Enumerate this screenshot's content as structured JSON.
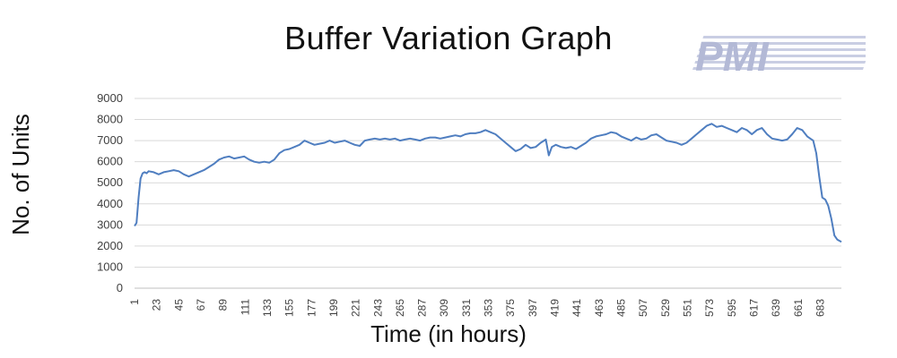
{
  "chart_data": {
    "type": "line",
    "title": "Buffer Variation Graph",
    "xlabel": "Time (in hours)",
    "ylabel": "No. of Units",
    "ylim": [
      0,
      9000
    ],
    "yticks": [
      0,
      1000,
      2000,
      3000,
      4000,
      5000,
      6000,
      7000,
      8000,
      9000
    ],
    "xlim": [
      1,
      704
    ],
    "xticks": [
      "1",
      "23",
      "45",
      "67",
      "89",
      "111",
      "133",
      "155",
      "177",
      "199",
      "221",
      "243",
      "265",
      "287",
      "309",
      "331",
      "353",
      "375",
      "397",
      "419",
      "441",
      "463",
      "485",
      "507",
      "529",
      "551",
      "573",
      "595",
      "617",
      "639",
      "661",
      "683"
    ],
    "grid": "horizontal",
    "legend": "none",
    "colors": {
      "line": "#4f7ec0",
      "grid": "#d9d9d9",
      "axis_text": "#404040"
    },
    "series": [
      {
        "x": [
          1,
          3,
          5,
          7,
          9,
          11,
          13,
          15,
          20,
          25,
          30,
          35,
          40,
          45,
          50,
          55,
          60,
          65,
          70,
          75,
          80,
          85,
          90,
          95,
          100,
          105,
          110,
          115,
          120,
          125,
          130,
          135,
          140,
          145,
          150,
          155,
          160,
          165,
          170,
          175,
          180,
          185,
          190,
          195,
          200,
          205,
          210,
          215,
          220,
          225,
          230,
          235,
          240,
          245,
          250,
          255,
          260,
          265,
          270,
          275,
          280,
          285,
          290,
          295,
          300,
          305,
          310,
          315,
          320,
          325,
          330,
          335,
          340,
          345,
          350,
          355,
          360,
          365,
          370,
          375,
          380,
          385,
          390,
          395,
          400,
          405,
          410,
          413,
          416,
          420,
          425,
          430,
          435,
          440,
          445,
          450,
          455,
          460,
          465,
          470,
          475,
          480,
          485,
          490,
          495,
          500,
          505,
          510,
          515,
          520,
          525,
          530,
          535,
          540,
          545,
          550,
          555,
          560,
          565,
          570,
          575,
          580,
          585,
          590,
          595,
          600,
          605,
          610,
          615,
          620,
          625,
          630,
          635,
          640,
          645,
          650,
          655,
          660,
          665,
          670,
          673,
          676,
          679,
          682,
          685,
          688,
          691,
          694,
          697,
          700,
          704
        ],
        "y": [
          2950,
          3100,
          4300,
          5200,
          5450,
          5500,
          5450,
          5550,
          5500,
          5400,
          5500,
          5550,
          5600,
          5550,
          5400,
          5300,
          5400,
          5500,
          5600,
          5750,
          5900,
          6100,
          6200,
          6250,
          6150,
          6200,
          6250,
          6100,
          6000,
          5950,
          6000,
          5950,
          6100,
          6400,
          6550,
          6600,
          6700,
          6800,
          7000,
          6900,
          6800,
          6850,
          6900,
          7000,
          6900,
          6950,
          7000,
          6900,
          6800,
          6750,
          7000,
          7050,
          7100,
          7050,
          7100,
          7050,
          7100,
          7000,
          7050,
          7100,
          7050,
          7000,
          7100,
          7150,
          7150,
          7100,
          7150,
          7200,
          7250,
          7200,
          7300,
          7350,
          7350,
          7400,
          7500,
          7400,
          7300,
          7100,
          6900,
          6700,
          6500,
          6600,
          6800,
          6650,
          6700,
          6900,
          7050,
          6300,
          6700,
          6800,
          6700,
          6650,
          6700,
          6600,
          6750,
          6900,
          7100,
          7200,
          7250,
          7300,
          7400,
          7350,
          7200,
          7100,
          7000,
          7150,
          7050,
          7100,
          7250,
          7300,
          7150,
          7000,
          6950,
          6900,
          6800,
          6900,
          7100,
          7300,
          7500,
          7700,
          7800,
          7650,
          7700,
          7600,
          7500,
          7400,
          7600,
          7500,
          7300,
          7500,
          7600,
          7300,
          7100,
          7050,
          7000,
          7050,
          7300,
          7600,
          7500,
          7200,
          7100,
          7000,
          6400,
          5300,
          4300,
          4200,
          3900,
          3300,
          2500,
          2300,
          2200
        ]
      }
    ]
  }
}
